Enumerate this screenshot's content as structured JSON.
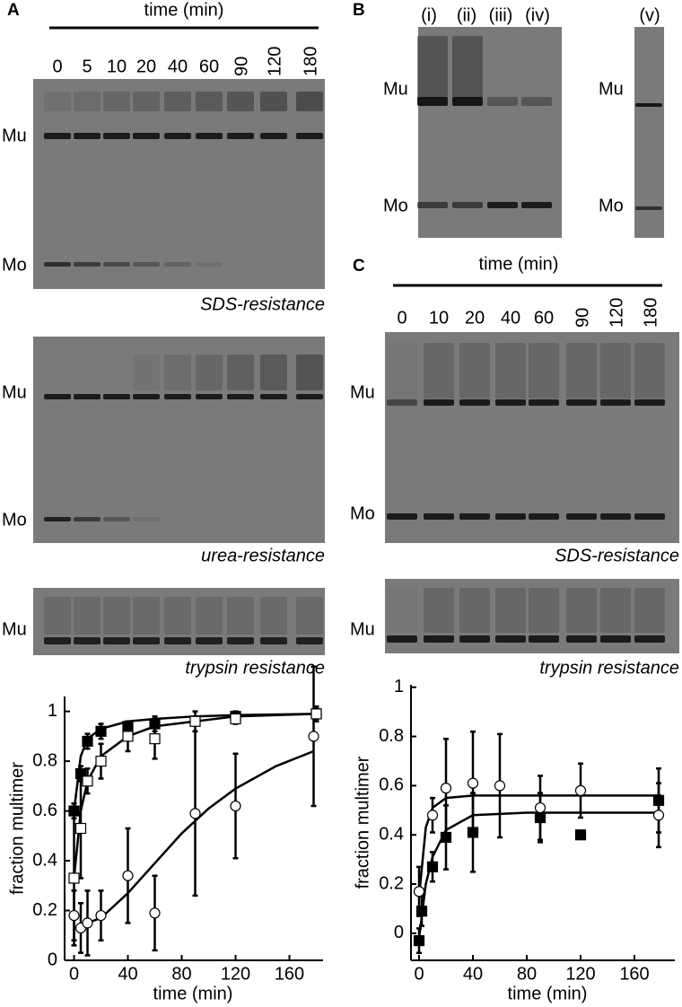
{
  "panels": {
    "A": {
      "label": "A",
      "time_label": "time (min)",
      "lanes": [
        "0",
        "5",
        "10",
        "20",
        "40",
        "60",
        "90",
        "120",
        "180"
      ],
      "gels": [
        {
          "caption": "SDS-resistance",
          "bands": [
            "Mu",
            "Mo"
          ]
        },
        {
          "caption": "urea-resistance",
          "bands": [
            "Mu",
            "Mo"
          ]
        },
        {
          "caption": "trypsin resistance",
          "bands": [
            "Mu"
          ]
        }
      ]
    },
    "B": {
      "label": "B",
      "lanes": [
        "(i)",
        "(ii)",
        "(iii)",
        "(iv)",
        "(v)"
      ],
      "bands_left": [
        "Mu",
        "Mo"
      ],
      "bands_right": [
        "Mu",
        "Mo"
      ]
    },
    "C": {
      "label": "C",
      "time_label": "time (min)",
      "lanes": [
        "0",
        "10",
        "20",
        "40",
        "60",
        "90",
        "120",
        "180"
      ],
      "gels": [
        {
          "caption": "SDS-resistance",
          "bands": [
            "Mu",
            "Mo"
          ]
        },
        {
          "caption": "trypsin resistance",
          "bands": [
            "Mu"
          ]
        }
      ]
    }
  },
  "chart_data": [
    {
      "type": "scatter",
      "xlabel": "time (min)",
      "ylabel": "fraction multimer",
      "xlim": [
        -7,
        185
      ],
      "ylim": [
        0,
        1.06
      ],
      "xticks": [
        0,
        40,
        80,
        120,
        160
      ],
      "yticks": [
        0,
        0.2,
        0.4,
        0.6,
        0.8,
        1
      ],
      "series": [
        {
          "marker": "square",
          "color": "#000000",
          "filled": true,
          "x": [
            0,
            5,
            10,
            20,
            40,
            60,
            120,
            180
          ],
          "values": [
            0.6,
            0.75,
            0.88,
            0.92,
            0.94,
            0.95,
            0.98,
            0.99
          ],
          "errors": [
            0.03,
            0.03,
            0.03,
            0.03,
            0.02,
            0.03,
            0.02,
            0.02
          ],
          "fit_x": [
            0,
            5,
            10,
            20,
            40,
            60,
            90,
            120,
            180
          ],
          "fit": [
            0.6,
            0.82,
            0.89,
            0.93,
            0.96,
            0.97,
            0.98,
            0.985,
            0.99
          ]
        },
        {
          "marker": "square",
          "color": "#000000",
          "filled": false,
          "x": [
            0,
            5,
            10,
            20,
            40,
            60,
            90,
            120,
            180
          ],
          "values": [
            0.33,
            0.53,
            0.72,
            0.8,
            0.9,
            0.89,
            0.96,
            0.97,
            0.99
          ],
          "errors": [
            0.27,
            0.2,
            0.05,
            0.07,
            0.06,
            0.08,
            0.04,
            0.02,
            0.03
          ],
          "fit_x": [
            0,
            5,
            10,
            20,
            40,
            60,
            90,
            120,
            180
          ],
          "fit": [
            0.33,
            0.6,
            0.72,
            0.82,
            0.9,
            0.94,
            0.96,
            0.98,
            0.99
          ]
        },
        {
          "marker": "circle",
          "color": "#000000",
          "filled": false,
          "x": [
            0,
            5,
            10,
            20,
            40,
            60,
            90,
            120,
            178
          ],
          "values": [
            0.18,
            0.13,
            0.15,
            0.18,
            0.34,
            0.19,
            0.59,
            0.62,
            0.9
          ],
          "errors": [
            0.1,
            0.1,
            0.13,
            0.1,
            0.19,
            0.15,
            0.33,
            0.21,
            0.28
          ],
          "fit_x": [
            0,
            20,
            40,
            60,
            80,
            100,
            120,
            150,
            178
          ],
          "fit": [
            0.13,
            0.17,
            0.27,
            0.39,
            0.51,
            0.61,
            0.69,
            0.78,
            0.84
          ]
        }
      ]
    },
    {
      "type": "scatter",
      "xlabel": "time (min)",
      "ylabel": "fraction multimer",
      "xlim": [
        -6,
        190
      ],
      "ylim": [
        -0.11,
        1.01
      ],
      "xticks": [
        0,
        40,
        80,
        120,
        160
      ],
      "yticks": [
        0,
        0.2,
        0.4,
        0.6,
        0.8,
        1
      ],
      "series": [
        {
          "marker": "square",
          "color": "#000000",
          "filled": true,
          "x": [
            0,
            2,
            10,
            20,
            40,
            90,
            120,
            178
          ],
          "values": [
            -0.03,
            0.09,
            0.27,
            0.39,
            0.41,
            0.47,
            0.4,
            0.54
          ],
          "errors": [
            0.05,
            0.06,
            0.06,
            0.13,
            0.16,
            0.1,
            0,
            0.13
          ],
          "fit_x": [
            0,
            5,
            10,
            20,
            40,
            80,
            120,
            180
          ],
          "fit": [
            -0.02,
            0.2,
            0.31,
            0.42,
            0.48,
            0.49,
            0.49,
            0.49
          ]
        },
        {
          "marker": "circle",
          "color": "#000000",
          "filled": false,
          "x": [
            0,
            10,
            20,
            40,
            60,
            90,
            120,
            178
          ],
          "values": [
            0.17,
            0.48,
            0.59,
            0.61,
            0.6,
            0.51,
            0.58,
            0.48
          ],
          "errors": [
            0.1,
            0.07,
            0.2,
            0.21,
            0.21,
            0.13,
            0.11,
            0.13
          ],
          "fit_x": [
            0,
            5,
            10,
            20,
            40,
            80,
            120,
            180
          ],
          "fit": [
            0.15,
            0.43,
            0.51,
            0.55,
            0.56,
            0.56,
            0.56,
            0.56
          ]
        }
      ]
    }
  ]
}
